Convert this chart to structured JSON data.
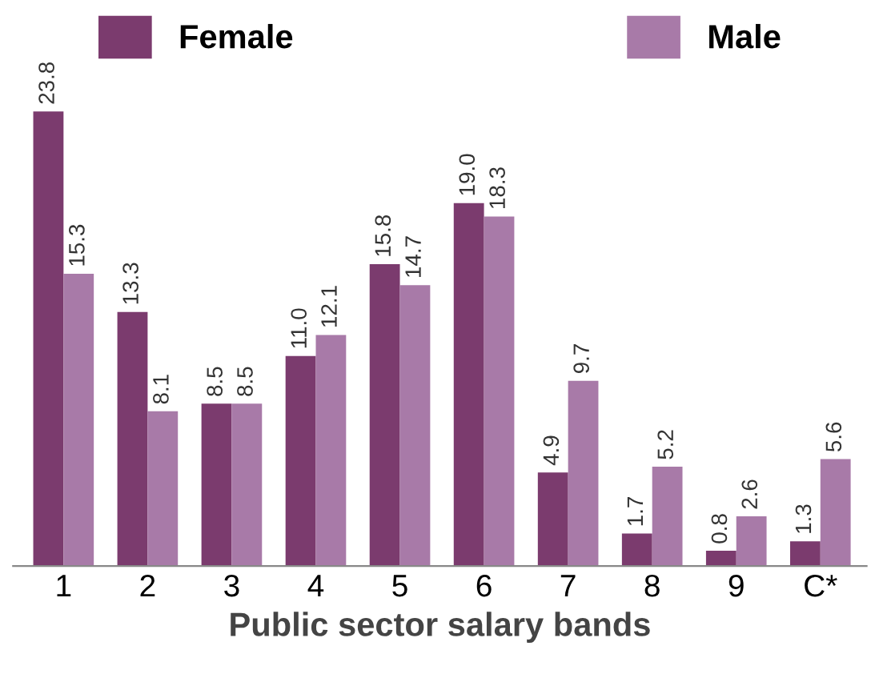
{
  "chart_data": {
    "type": "bar",
    "xlabel": "Public sector salary bands",
    "categories": [
      "1",
      "2",
      "3",
      "4",
      "5",
      "6",
      "7",
      "8",
      "9",
      "C*"
    ],
    "series": [
      {
        "name": "Female",
        "color": "#7b3b6e",
        "values": [
          23.8,
          13.3,
          8.5,
          11.0,
          15.8,
          19.0,
          4.9,
          1.7,
          0.8,
          1.3
        ],
        "value_labels": [
          "23.8",
          "13.3",
          "8.5",
          "11.0",
          "15.8",
          "19.0",
          "4.9",
          "1.7",
          "0.8",
          "1.3"
        ]
      },
      {
        "name": "Male",
        "color": "#a87aa8",
        "values": [
          15.3,
          8.1,
          8.5,
          12.1,
          14.7,
          18.3,
          9.7,
          5.2,
          2.6,
          5.6
        ],
        "value_labels": [
          "15.3",
          "8.1",
          "8.5",
          "12.1",
          "14.7",
          "18.3",
          "9.7",
          "5.2",
          "2.6",
          "5.6"
        ]
      }
    ],
    "legend": "top",
    "grid": false,
    "tick_labels": "x"
  }
}
